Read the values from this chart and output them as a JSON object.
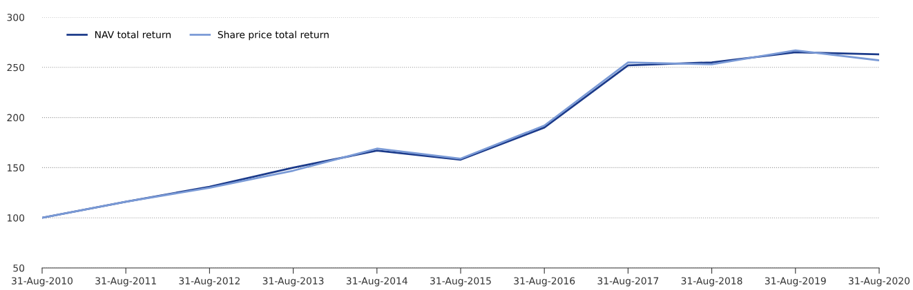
{
  "chart_data": {
    "type": "line",
    "categories": [
      "31-Aug-2010",
      "31-Aug-2011",
      "31-Aug-2012",
      "31-Aug-2013",
      "31-Aug-2014",
      "31-Aug-2015",
      "31-Aug-2016",
      "31-Aug-2017",
      "31-Aug-2018",
      "31-Aug-2019",
      "31-Aug-2020"
    ],
    "series": [
      {
        "name": "NAV total return",
        "color": "#1b3a8a",
        "values": [
          100,
          116,
          131,
          150,
          167,
          158,
          190,
          252,
          255,
          265,
          263
        ]
      },
      {
        "name": "Share price total return",
        "color": "#7a9ad6",
        "values": [
          100,
          116,
          130,
          147,
          169,
          159,
          192,
          255,
          253,
          267,
          257
        ]
      }
    ],
    "ylim": [
      50,
      300
    ],
    "yticks": [
      50,
      100,
      150,
      200,
      250,
      300
    ],
    "grid": "y",
    "legend": "top left",
    "marker": "none",
    "line_style": "solid"
  }
}
